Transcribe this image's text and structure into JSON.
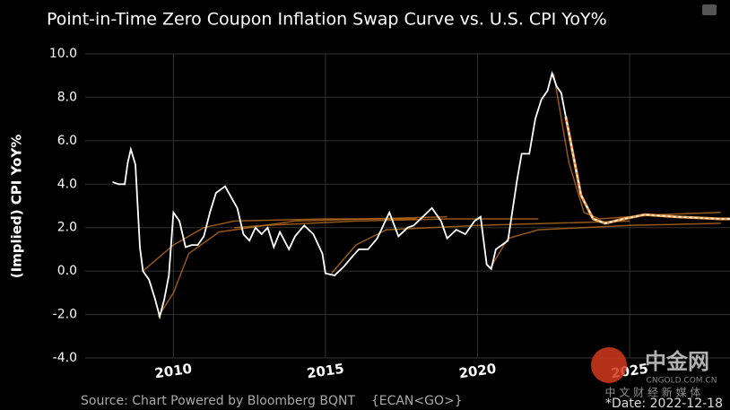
{
  "chart_data": {
    "type": "line",
    "title": "Point-in-Time Zero Coupon Inflation Swap Curve vs. U.S. CPI YoY%",
    "y_label": "(Implied) CPI YoY%",
    "source": "Source: Chart Powered by Bloomberg BQNT    {ECAN<GO>}",
    "date_note": "*Date: 2022-12-18",
    "watermark": [
      "中金网",
      "CNGOLD.COM.CN",
      "中 文 财 经 新 媒 体"
    ],
    "background": "#000000",
    "grid": true,
    "xlim": [
      2007.1,
      2028.3
    ],
    "xticks": [
      2010,
      2015,
      2020,
      2025
    ],
    "ylim": [
      -4,
      10
    ],
    "yticks": [
      {
        "value": -4,
        "label": "-4.0"
      },
      {
        "value": -2,
        "label": "-2.0"
      },
      {
        "value": 0,
        "label": "0.0"
      },
      {
        "value": 2,
        "label": "2.0"
      },
      {
        "value": 4,
        "label": "4.0"
      },
      {
        "value": 6,
        "label": "6.0"
      },
      {
        "value": 8,
        "label": "8.0"
      },
      {
        "value": 10,
        "label": "10.0"
      }
    ],
    "series": [
      {
        "color": "#c8741e",
        "width": 1.5,
        "x": [
          2009.0,
          2010.0,
          2011.0,
          2012.0,
          2015.0,
          2018.0
        ],
        "values": [
          0.0,
          1.2,
          2.0,
          2.3,
          2.4,
          2.4
        ]
      },
      {
        "color": "#c8741e",
        "width": 1.5,
        "x": [
          2009.5,
          2010.0,
          2010.5,
          2011.5,
          2014.0,
          2019.0
        ],
        "values": [
          -2.1,
          -1.0,
          0.8,
          1.8,
          2.3,
          2.5
        ]
      },
      {
        "color": "#c8741e",
        "width": 1.5,
        "x": [
          2012.0,
          2013.0,
          2016.0,
          2019.0,
          2022.0
        ],
        "values": [
          2.0,
          2.1,
          2.3,
          2.4,
          2.4
        ]
      },
      {
        "color": "#c8741e",
        "width": 1.5,
        "x": [
          2015.2,
          2016.0,
          2017.0,
          2020.0,
          2025.0
        ],
        "values": [
          -0.1,
          1.2,
          1.9,
          2.1,
          2.3
        ]
      },
      {
        "color": "#c8741e",
        "width": 1.5,
        "x": [
          2020.4,
          2021.0,
          2022.0,
          2025.0,
          2028.0
        ],
        "values": [
          0.1,
          1.5,
          1.9,
          2.1,
          2.2
        ]
      },
      {
        "color": "#c8741e",
        "width": 1.5,
        "x": [
          2022.5,
          2023.0,
          2023.5,
          2024.0,
          2026.0,
          2028.0
        ],
        "values": [
          9.1,
          5.0,
          2.7,
          2.4,
          2.6,
          2.7
        ]
      },
      {
        "color": "#f0a050",
        "width": 3,
        "dashed": true,
        "x": [
          2022.9,
          2023.4,
          2023.8,
          2024.2,
          2024.8,
          2025.5,
          2026.5,
          2028.0,
          2028.3
        ],
        "values": [
          7.1,
          3.5,
          2.4,
          2.2,
          2.4,
          2.6,
          2.5,
          2.4,
          2.4
        ]
      },
      {
        "color": "#ffffff",
        "width": 1.8,
        "x": [
          2008.0,
          2008.2,
          2008.4,
          2008.5,
          2008.6,
          2008.75,
          2008.9,
          2009.0,
          2009.2,
          2009.4,
          2009.55,
          2009.7,
          2009.85,
          2010.0,
          2010.2,
          2010.4,
          2010.6,
          2010.8,
          2011.0,
          2011.2,
          2011.4,
          2011.7,
          2011.9,
          2012.1,
          2012.3,
          2012.5,
          2012.7,
          2012.9,
          2013.1,
          2013.3,
          2013.5,
          2013.8,
          2014.0,
          2014.3,
          2014.6,
          2014.9,
          2015.0,
          2015.3,
          2015.6,
          2015.9,
          2016.1,
          2016.4,
          2016.7,
          2016.9,
          2017.1,
          2017.4,
          2017.7,
          2017.9,
          2018.2,
          2018.5,
          2018.8,
          2019.0,
          2019.3,
          2019.6,
          2019.9,
          2020.1,
          2020.3,
          2020.45,
          2020.6,
          2020.8,
          2021.0,
          2021.3,
          2021.45,
          2021.7,
          2021.9,
          2022.1,
          2022.3,
          2022.45,
          2022.6,
          2022.75,
          2022.9
        ],
        "values": [
          4.1,
          4.0,
          4.0,
          5.0,
          5.6,
          4.9,
          1.1,
          0.0,
          -0.4,
          -1.3,
          -2.1,
          -1.3,
          -0.2,
          2.7,
          2.3,
          1.1,
          1.2,
          1.2,
          1.6,
          2.7,
          3.6,
          3.9,
          3.4,
          2.9,
          1.7,
          1.4,
          2.0,
          1.7,
          2.0,
          1.1,
          1.8,
          1.0,
          1.6,
          2.1,
          1.7,
          0.8,
          -0.1,
          -0.2,
          0.2,
          0.7,
          1.0,
          1.0,
          1.5,
          2.1,
          2.7,
          1.6,
          2.0,
          2.1,
          2.5,
          2.9,
          2.3,
          1.5,
          1.9,
          1.7,
          2.3,
          2.5,
          0.3,
          0.1,
          1.0,
          1.2,
          1.4,
          4.2,
          5.4,
          5.4,
          7.0,
          7.9,
          8.3,
          9.1,
          8.5,
          8.2,
          7.1
        ]
      }
    ]
  }
}
